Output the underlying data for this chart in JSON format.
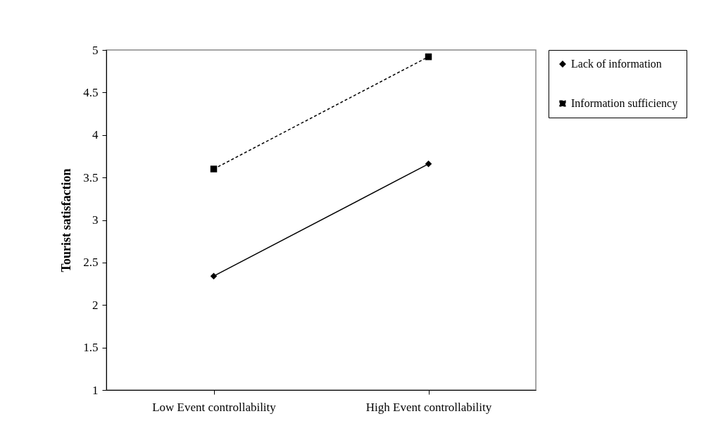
{
  "chart_data": {
    "type": "line",
    "ylabel": "Tourist satisfaction",
    "categories": [
      "Low Event controllability",
      "High Event controllability"
    ],
    "series": [
      {
        "name": "Lack of information",
        "color": "#000000",
        "values": [
          2.34,
          3.66
        ],
        "marker": "diamond",
        "line_style": "solid"
      },
      {
        "name": "Information sufficiency",
        "color": "#000000",
        "values": [
          3.6,
          4.92
        ],
        "marker": "square",
        "line_style": "dashed"
      }
    ],
    "ylim": [
      1,
      5
    ],
    "yticks": [
      1,
      1.5,
      2,
      2.5,
      3,
      3.5,
      4,
      4.5,
      5
    ],
    "grid": false,
    "legend": "right"
  }
}
